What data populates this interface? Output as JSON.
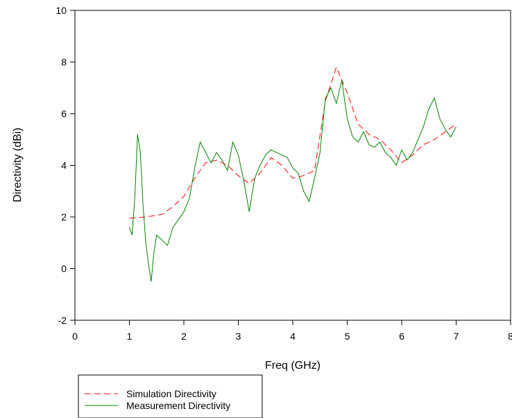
{
  "chart_data": {
    "type": "line",
    "xlabel": "Freq (GHz)",
    "ylabel": "Directivity (dBi)",
    "xlim": [
      0,
      8
    ],
    "ylim": [
      -2,
      10
    ],
    "x_ticks": [
      0,
      1,
      2,
      3,
      4,
      5,
      6,
      7,
      8
    ],
    "y_ticks": [
      -2,
      0,
      2,
      4,
      6,
      8,
      10
    ],
    "grid": false,
    "legend_position": "bottom-left",
    "series": [
      {
        "name": "Simulation Directivity",
        "color": "#ff0000",
        "style": "dashed",
        "x": [
          1.0,
          1.3,
          1.6,
          1.8,
          2.0,
          2.2,
          2.4,
          2.6,
          2.8,
          3.0,
          3.2,
          3.4,
          3.6,
          3.8,
          4.0,
          4.2,
          4.4,
          4.6,
          4.8,
          5.0,
          5.2,
          5.4,
          5.6,
          5.8,
          6.0,
          6.2,
          6.4,
          6.6,
          6.8,
          7.0
        ],
        "y": [
          1.95,
          2.0,
          2.1,
          2.4,
          2.8,
          3.5,
          4.1,
          4.2,
          4.0,
          3.6,
          3.3,
          3.7,
          4.3,
          4.0,
          3.5,
          3.6,
          3.8,
          6.5,
          7.8,
          6.8,
          5.6,
          5.2,
          5.0,
          4.6,
          4.1,
          4.4,
          4.8,
          5.0,
          5.3,
          5.6
        ]
      },
      {
        "name": "Measurement Directivity",
        "color": "#008000",
        "style": "solid",
        "x": [
          1.0,
          1.05,
          1.1,
          1.15,
          1.2,
          1.25,
          1.3,
          1.35,
          1.4,
          1.45,
          1.5,
          1.6,
          1.7,
          1.8,
          1.9,
          2.0,
          2.1,
          2.2,
          2.3,
          2.4,
          2.5,
          2.6,
          2.7,
          2.8,
          2.9,
          3.0,
          3.1,
          3.2,
          3.3,
          3.4,
          3.5,
          3.6,
          3.7,
          3.8,
          3.9,
          4.0,
          4.1,
          4.2,
          4.3,
          4.4,
          4.5,
          4.6,
          4.7,
          4.8,
          4.9,
          5.0,
          5.1,
          5.2,
          5.3,
          5.4,
          5.5,
          5.6,
          5.7,
          5.8,
          5.9,
          6.0,
          6.1,
          6.2,
          6.3,
          6.4,
          6.5,
          6.6,
          6.7,
          6.8,
          6.9,
          7.0
        ],
        "y": [
          1.6,
          1.3,
          2.8,
          5.2,
          4.5,
          2.5,
          1.0,
          0.2,
          -0.5,
          0.6,
          1.3,
          1.1,
          0.9,
          1.6,
          1.9,
          2.2,
          2.7,
          3.9,
          4.9,
          4.5,
          4.1,
          4.5,
          4.2,
          3.8,
          4.9,
          4.4,
          3.4,
          2.2,
          3.5,
          4.0,
          4.4,
          4.6,
          4.5,
          4.4,
          4.3,
          3.9,
          3.7,
          3.0,
          2.6,
          3.5,
          4.5,
          6.6,
          7.0,
          6.4,
          7.3,
          5.8,
          5.1,
          4.9,
          5.3,
          4.8,
          4.7,
          4.9,
          4.5,
          4.3,
          4.0,
          4.6,
          4.2,
          4.5,
          5.0,
          5.5,
          6.2,
          6.6,
          5.8,
          5.4,
          5.1,
          5.5
        ]
      }
    ]
  }
}
